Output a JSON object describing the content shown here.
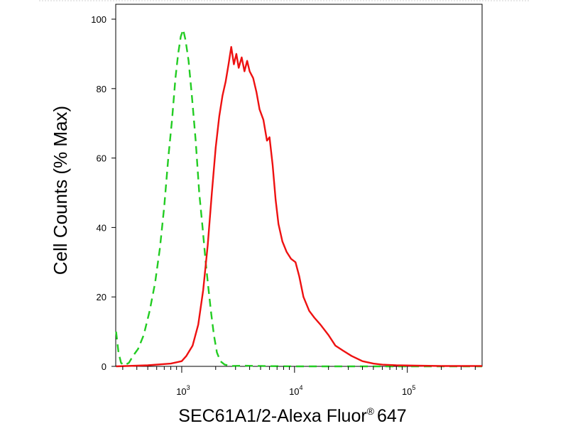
{
  "chart_data": {
    "type": "line",
    "title": "",
    "xlabel": "SEC61A1/2-Alexa Fluor",
    "xlabel_superscript": "®",
    "xlabel_suffix": "647",
    "ylabel": "Cell Counts (% Max)",
    "x_scale": "log",
    "xlim": [
      260,
      460000
    ],
    "ylim": [
      0,
      100
    ],
    "y_ticks": [
      0,
      20,
      40,
      60,
      80,
      100
    ],
    "y_tick_labels": [
      "0",
      "20",
      "40",
      "60",
      "80",
      "100"
    ],
    "x_ticks": [
      1000,
      10000,
      100000
    ],
    "x_tick_labels": [
      {
        "base": "10",
        "exp": "3"
      },
      {
        "base": "10",
        "exp": "4"
      },
      {
        "base": "10",
        "exp": "5"
      }
    ],
    "grid": false,
    "legend": "none",
    "series": [
      {
        "color": "#22cc22",
        "style": "dashed",
        "x": [
          262,
          275,
          290,
          310,
          340,
          370,
          410,
          460,
          520,
          580,
          640,
          700,
          760,
          820,
          880,
          930,
          980,
          1030,
          1080,
          1150,
          1230,
          1330,
          1430,
          1530,
          1630,
          1730,
          1830,
          1930,
          2050,
          2200,
          2400,
          2800,
          3500,
          5000,
          10000,
          50000,
          460000
        ],
        "values": [
          10,
          4,
          1,
          0.3,
          1,
          3,
          5,
          9,
          16,
          24,
          34,
          46,
          60,
          71,
          83,
          90,
          95,
          97,
          94,
          88,
          78,
          65,
          50,
          40,
          30,
          22,
          15,
          9,
          4,
          1.5,
          0.5,
          0.1,
          0.2,
          0.1,
          0,
          0,
          0
        ]
      },
      {
        "color": "#ee1111",
        "style": "solid",
        "x": [
          262,
          500,
          800,
          1000,
          1100,
          1250,
          1400,
          1550,
          1700,
          1850,
          2000,
          2150,
          2300,
          2450,
          2600,
          2750,
          2900,
          3050,
          3200,
          3400,
          3600,
          3800,
          4000,
          4300,
          4600,
          4900,
          5300,
          5700,
          6000,
          6400,
          6800,
          7200,
          7800,
          8500,
          9300,
          10200,
          11000,
          12000,
          13500,
          15000,
          17000,
          20000,
          23000,
          27000,
          32000,
          40000,
          50000,
          60000,
          80000,
          120000,
          200000,
          460000
        ],
        "values": [
          0,
          0.3,
          0.8,
          1.5,
          3,
          6,
          12,
          22,
          35,
          50,
          63,
          72,
          78,
          82,
          87,
          92,
          87,
          90,
          86,
          89,
          85,
          88,
          85,
          83,
          79,
          74,
          71,
          65,
          66,
          58,
          48,
          41,
          36,
          33,
          31,
          30,
          26,
          20,
          16,
          14,
          12,
          9,
          6,
          4.5,
          3,
          1.5,
          0.8,
          0.5,
          0.3,
          0.2,
          0.1,
          0.1
        ]
      }
    ]
  }
}
